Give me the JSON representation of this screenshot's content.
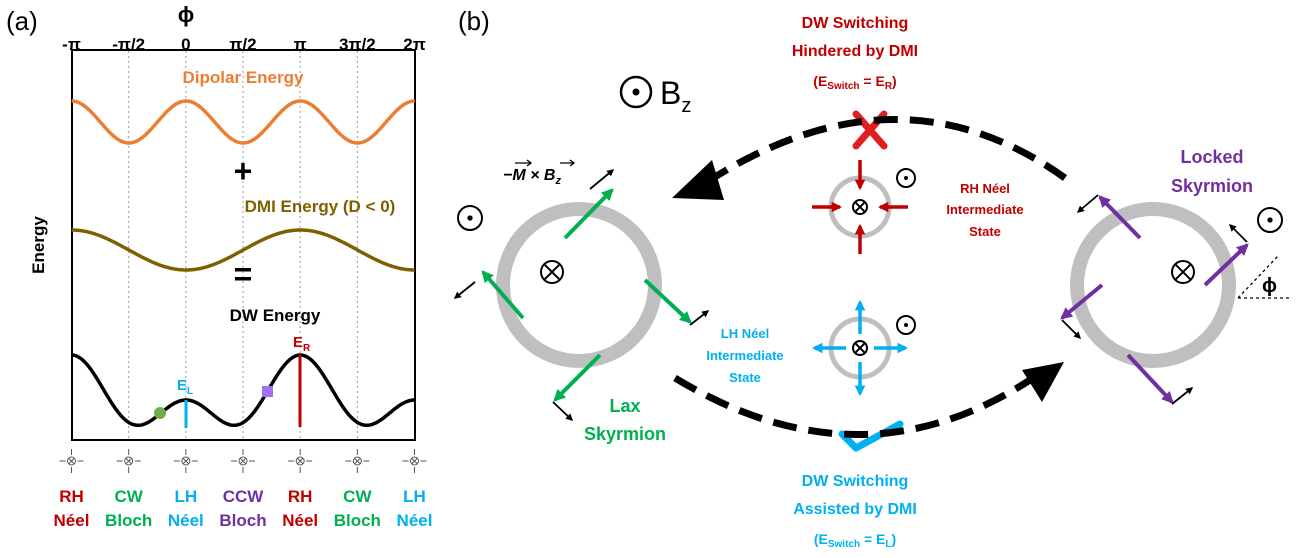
{
  "panel_a": {
    "label": "(a)",
    "axis_title": "ϕ",
    "ticks": [
      "-π",
      "-π/2",
      "0",
      "π/2",
      "π",
      "3π/2",
      "2π"
    ],
    "y_label": "Energy",
    "dipolar": "Dipolar Energy",
    "plus": "+",
    "dmi": "DMI Energy (D < 0)",
    "equals": "=",
    "dw": "DW Energy",
    "e_r": [
      "E",
      "R"
    ],
    "e_l": [
      "E",
      "L"
    ],
    "states": [
      [
        "RH",
        "Néel"
      ],
      [
        "CW",
        "Bloch"
      ],
      [
        "LH",
        "Néel"
      ],
      [
        "CCW",
        "Bloch"
      ],
      [
        "RH",
        "Néel"
      ],
      [
        "CW",
        "Bloch"
      ],
      [
        "LH",
        "Néel"
      ]
    ]
  },
  "panel_b": {
    "label": "(b)",
    "field": [
      "B",
      "z"
    ],
    "hindered": [
      "DW Switching",
      "Hindered by DMI"
    ],
    "hindered_eq": [
      "(E",
      "Switch",
      " = E",
      "R",
      ")"
    ],
    "assisted": [
      "DW Switching",
      "Assisted by DMI"
    ],
    "assisted_eq": [
      "(E",
      "Switch",
      " = E",
      "L",
      ")"
    ],
    "formula": [
      "−",
      "M",
      " × ",
      "B",
      "z"
    ],
    "rh_state": [
      "RH Néel",
      "Intermediate",
      "State"
    ],
    "lh_state": [
      "LH Néel",
      "Intermediate",
      "State"
    ],
    "lax": [
      "Lax",
      "Skyrmion"
    ],
    "locked": [
      "Locked",
      "Skyrmion"
    ],
    "angle": "ϕ"
  }
}
